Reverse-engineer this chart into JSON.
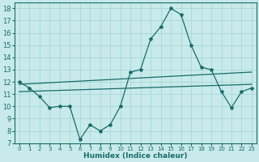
{
  "xlabel": "Humidex (Indice chaleur)",
  "xlim": [
    -0.5,
    23.5
  ],
  "ylim": [
    7,
    18.5
  ],
  "yticks": [
    7,
    8,
    9,
    10,
    11,
    12,
    13,
    14,
    15,
    16,
    17,
    18
  ],
  "xticks": [
    0,
    1,
    2,
    3,
    4,
    5,
    6,
    7,
    8,
    9,
    10,
    11,
    12,
    13,
    14,
    15,
    16,
    17,
    18,
    19,
    20,
    21,
    22,
    23
  ],
  "bg_color": "#c8eaea",
  "grid_color": "#a8d8d8",
  "line_color": "#1a6b6b",
  "line1_x": [
    0,
    1,
    2,
    3,
    4,
    5,
    6,
    7,
    8,
    9,
    10,
    11,
    12,
    13,
    14,
    15,
    16,
    17,
    18,
    19,
    20,
    21,
    22,
    23
  ],
  "line1_y": [
    12.0,
    11.5,
    10.8,
    9.9,
    10.0,
    10.0,
    7.3,
    8.5,
    8.0,
    8.5,
    10.0,
    12.8,
    13.0,
    15.5,
    16.5,
    18.0,
    17.5,
    15.0,
    13.2,
    13.0,
    11.2,
    9.9,
    11.2,
    11.5
  ],
  "line2_x": [
    0,
    23
  ],
  "line2_y": [
    11.8,
    12.8
  ],
  "line3_x": [
    0,
    23
  ],
  "line3_y": [
    11.2,
    11.8
  ]
}
